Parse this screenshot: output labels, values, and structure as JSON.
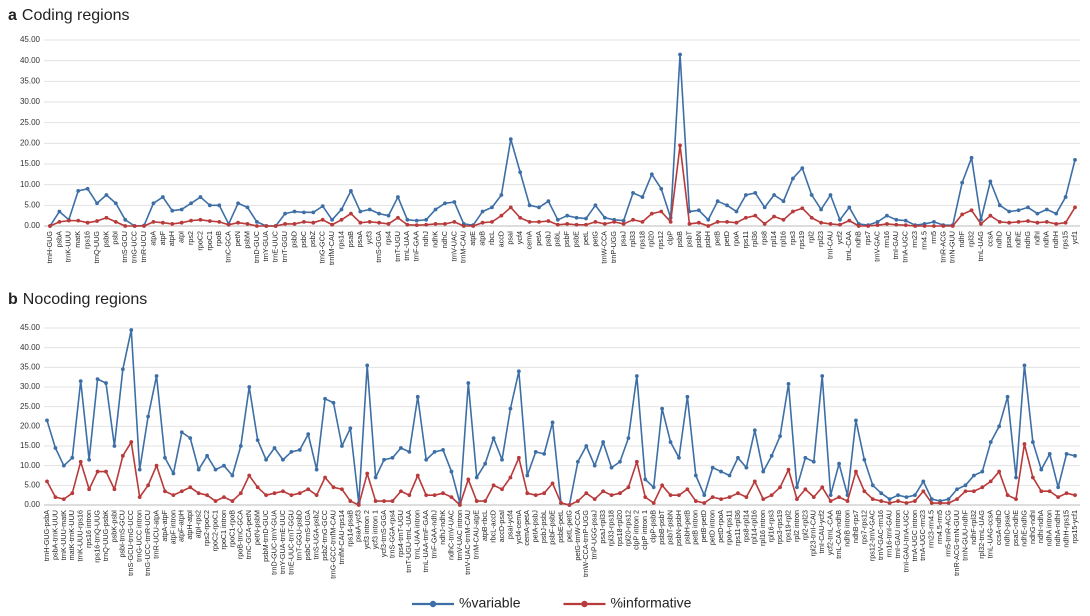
{
  "chart_data": [
    {
      "type": "line",
      "label": "a",
      "title": "Coding regions",
      "categories": [
        "trnH-GUG",
        "psbA",
        "trnK-UUU",
        "matK",
        "rps16",
        "trnQ-UUG",
        "psbK",
        "psbI",
        "trnS-GCU",
        "trnG-UCC",
        "trnR-UCU",
        "atpA",
        "atpF",
        "atpH",
        "atpI",
        "rps2",
        "rpoC2",
        "rpoC1",
        "rpoB",
        "trnC-GCA",
        "petN",
        "psbM",
        "trnD-GUC",
        "trnY-GUA",
        "trnE-UUC",
        "trnT-GGU",
        "psbD",
        "psbC",
        "psbZ",
        "trnG-GCC",
        "trnfM-CAU",
        "rps14",
        "psaB",
        "psaA",
        "ycf3",
        "trnS-GGA",
        "rps4",
        "trnT-UGU",
        "trnL-UAA",
        "trnF-GAA",
        "ndhJ",
        "ndhK",
        "ndhC",
        "trnV-UAC",
        "trnM-CAU",
        "atpE",
        "atpB",
        "rbcL",
        "accD",
        "psaI",
        "ycf4",
        "cemA",
        "petA",
        "psbJ",
        "psbL",
        "psbF",
        "psbE",
        "petL",
        "petG",
        "trnW-CCA",
        "trnP-UGG",
        "psaJ",
        "rpl33",
        "rps18",
        "rpl20",
        "rps12",
        "clpP",
        "psbB",
        "psbT",
        "psbN",
        "psbH",
        "petB",
        "petD",
        "rpoA",
        "rps11",
        "rpl36",
        "rps8",
        "rpl14",
        "rpl16",
        "rps3",
        "rps19",
        "rpl2",
        "rpl23",
        "trnI-CAU",
        "ycf2",
        "trnL-CAA",
        "ndhB",
        "rps7",
        "trnV-GAC",
        "rrn16",
        "trnI-GAU",
        "trnA-UGC",
        "rrn23",
        "rrn4.5",
        "rrn5",
        "trnR-ACG",
        "trnN-GUU",
        "ndhF",
        "rpl32",
        "trnL-UAG",
        "ccsA",
        "ndhD",
        "psaC",
        "ndhE",
        "ndhG",
        "ndhI",
        "ndhA",
        "ndhH",
        "rps15",
        "ycf1"
      ],
      "series": [
        {
          "color": "#3d6fa6",
          "values": [
            0,
            3.5,
            1.5,
            8.5,
            9,
            5.5,
            7.5,
            5.5,
            1.5,
            0,
            0.1,
            5.5,
            7,
            3.7,
            4,
            5.5,
            7,
            5,
            5,
            0.5,
            5.5,
            4.5,
            1,
            0,
            0,
            3,
            3.5,
            3.3,
            3.3,
            4.8,
            1.5,
            4,
            8.5,
            3.5,
            4,
            3,
            2.5,
            7,
            1.5,
            1.3,
            1.5,
            4,
            5.5,
            5.8,
            0.5,
            0.2,
            3.5,
            4.5,
            7.5,
            21,
            13,
            5,
            4.5,
            6,
            1.5,
            2.5,
            2,
            1.8,
            5,
            2,
            1.5,
            1.3,
            8,
            7,
            12.5,
            9,
            2,
            41.5,
            3.5,
            3.8,
            1.5,
            6,
            5,
            3.5,
            7.5,
            8,
            4.5,
            7.5,
            6,
            11.5,
            14,
            7.5,
            4,
            7.5,
            1.5,
            4.5,
            0.5,
            0.2,
            1,
            2.5,
            1.5,
            1.3,
            0.2,
            0.5,
            1,
            0.2,
            0.2,
            10.5,
            16.5,
            1.5,
            10.8,
            5,
            3.5,
            3.8,
            4.5,
            3,
            4,
            3,
            7,
            16
          ]
        },
        {
          "color": "#b83a3a",
          "values": [
            0,
            1,
            1.3,
            1.3,
            0.8,
            1.2,
            2,
            1,
            0,
            0,
            0,
            1,
            0.8,
            0.5,
            0.8,
            1.3,
            1.5,
            1.2,
            1,
            0.3,
            0.8,
            0.5,
            0,
            0,
            0,
            0.5,
            0.5,
            1,
            0.8,
            1.5,
            0.3,
            1.5,
            3,
            0.8,
            1,
            0.8,
            0.5,
            2,
            0.3,
            0.2,
            0.3,
            0.5,
            0.5,
            1,
            0,
            0,
            0.8,
            1,
            2.5,
            4.5,
            2,
            1,
            1,
            1.2,
            0.3,
            0.5,
            0.3,
            0.3,
            1,
            0.5,
            1,
            0.5,
            1.5,
            1,
            3,
            3.5,
            1,
            19.5,
            0.5,
            0.8,
            0,
            1,
            1,
            0.8,
            2,
            2.5,
            0.5,
            2.3,
            1.5,
            3.5,
            4.3,
            2,
            0.8,
            0.5,
            0.3,
            1.3,
            0,
            0,
            0.2,
            0.5,
            0.3,
            0.2,
            0,
            0,
            0,
            0,
            0,
            2.8,
            3.8,
            0.5,
            2.5,
            1,
            0.8,
            1,
            1.2,
            0.8,
            1,
            0.5,
            0.8,
            4.5
          ]
        }
      ],
      "ylim": [
        0,
        45
      ],
      "yticks": [
        {
          "value": 0,
          "label": "0.00"
        },
        {
          "value": 5,
          "label": "5.00"
        },
        {
          "value": 10,
          "label": "10.00"
        },
        {
          "value": 15,
          "label": "15.00"
        },
        {
          "value": 20,
          "label": "20.00"
        },
        {
          "value": 25,
          "label": "25.00"
        },
        {
          "value": 30,
          "label": "30.00"
        },
        {
          "value": 35,
          "label": "35.00"
        },
        {
          "value": 40,
          "label": "40.00"
        },
        {
          "value": 45,
          "label": "45.00"
        }
      ],
      "grid": true
    },
    {
      "type": "line",
      "label": "b",
      "title": "Nocoding regions",
      "categories": [
        "trnH-GUG-psbA",
        "psbA-trnK-UUU",
        "trnK-UUU-matK",
        "matK-trnK-UUU",
        "trnK-UUU-rps16",
        "rps16 intron",
        "rps16-trnQ-UUG",
        "trnQ-UUG-psbK",
        "psbK-psbI",
        "psbI-trnS-GCU",
        "trnS-GCU-trnG-UCC",
        "trnG-UCC intron",
        "trnG-UCC-trnR-UCU",
        "trnR-UCU-atpA",
        "atpA-atpF",
        "atpF intron",
        "atpF-atpH",
        "atpH-atpI",
        "atpI-rps2",
        "rps2-rpoC2",
        "rpoC2-rpoC1",
        "rpoC1 intron",
        "rpoC1-rpoB",
        "rpoB-trnC-GCA",
        "trnC-GCA-petN",
        "petN-psbM",
        "psbM-trnD-GUC",
        "trnD-GUC-trnY-GUA",
        "trnY-GUA-trnE-UUC",
        "trnE-UUC-trnT-GGU",
        "trnT-GGU-psbD",
        "psbC-trnS-UGA",
        "trnS-UGA-psbZ",
        "psbZ-trnG-GCC",
        "trnG-GCC-trnfM-CAU",
        "trnfM-CAU-rps14",
        "rps14-psaB",
        "psaA-ycf3",
        "ycf3 intron 2",
        "ycf3 intron 1",
        "ycf3-trnS-GGA",
        "trnS-GGA-rps4",
        "rps4-trnT-UGU",
        "trnT-UGU-trnL-UAA",
        "trnL-UAA intron",
        "trnL-UAA-trnF-GAA",
        "trnF-GAA-ndhJ",
        "ndhJ-ndhK",
        "ndhC-trnV-UAC",
        "trnV-UAC intron",
        "trnV-UAC-trnM-CAU",
        "trnM-CAU-atpE",
        "atpB-rbcL",
        "rbcL-accD",
        "accD-psaI",
        "psaI-ycf4",
        "ycf4-cemA",
        "cemA-petA",
        "petA-psbJ",
        "psbJ-psbL",
        "psbF-psbE",
        "psbE-petL",
        "petL-petG",
        "petG-trnW-CCA",
        "trnW-CCA-trnP-UGG",
        "trnP-UGG-psaJ",
        "psaJ-rpl33",
        "rpl33-rps18",
        "rps18-rpl20",
        "rpl20-rps12",
        "clpP intron 2",
        "clpP intron 1",
        "clpP-psbB",
        "psbB-psbT",
        "psbT-psbN",
        "psbN-psbH",
        "psbH-petB",
        "petB intron",
        "petB-petD",
        "petD intron",
        "petD-rpoA",
        "rpoA-rps11",
        "rps11-rpl36",
        "rps8-rpl14",
        "rpl14-rpl16",
        "rpl16 intron",
        "rpl16-rps3",
        "rps3-rps19",
        "rps19-rpl2",
        "rpl2 intron",
        "rpl2-rpl23",
        "rpl23-trnI-CAU",
        "trnI-CAU-ycf2",
        "ycf2-trnL-CAA",
        "trnL-CAA-ndhB",
        "ndhB intron",
        "ndhB-rps7",
        "rps7-rps12",
        "rps12-trnV-GAC",
        "trnV-GAC-rrn16",
        "rrn16-trnI-GAU",
        "trnI-GAU intron",
        "trnI-GAU-trnA-UGC",
        "trnA-UGC intron",
        "trnA-UGC-rrn23",
        "rrn23-rrn4.5",
        "rrn4.5-rrn5",
        "rrn5-trnR-ACG",
        "trnR-ACG-trnN-GUU",
        "trnN-GUU-ndhF",
        "ndhF-rpl32",
        "rpl32-trnL-UAG",
        "trnL-UAG-ccsA",
        "ccsA-ndhD",
        "ndhD-psaC",
        "psaC-ndhE",
        "ndhE-ndhG",
        "ndhG-ndhI",
        "ndhI-ndhA",
        "ndhA intron",
        "ndhA-ndhH",
        "ndhH-rps15",
        "rps15-ycf1"
      ],
      "series": [
        {
          "name": "%variable",
          "color": "#3d6fa6",
          "values": [
            21.5,
            14.5,
            10,
            12,
            31.5,
            11.5,
            32,
            31,
            15,
            34.5,
            44.5,
            9,
            22.5,
            32.8,
            12,
            8,
            18.5,
            17,
            9,
            12.5,
            9,
            10,
            7.5,
            15,
            30,
            16.5,
            11.5,
            14.5,
            11.5,
            13.5,
            14,
            18,
            9,
            27,
            26,
            15,
            19.5,
            0.5,
            35.5,
            7,
            11.5,
            12,
            14.5,
            13.5,
            27.5,
            11.5,
            13.5,
            14,
            8.5,
            0.5,
            31,
            7,
            10.5,
            17,
            11.5,
            24.5,
            34,
            7.5,
            13.5,
            13,
            21,
            0.5,
            0,
            11,
            15,
            10,
            16,
            9.5,
            11,
            17,
            32.8,
            6.5,
            4.5,
            24.5,
            16,
            12,
            27.5,
            7.5,
            2.5,
            9.5,
            8.5,
            7.5,
            12,
            9.5,
            19,
            8.5,
            12.5,
            17.5,
            30.8,
            4.5,
            12,
            11,
            32.8,
            2.5,
            10.5,
            2.5,
            21.5,
            11.5,
            5,
            3,
            1.5,
            2.5,
            2,
            2.5,
            6,
            1.5,
            1,
            1.5,
            4,
            5,
            7.5,
            8.5,
            16,
            20,
            27.5,
            7,
            35.5,
            16,
            9,
            13,
            4.5,
            13,
            12.5
          ]
        },
        {
          "name": "%informative",
          "color": "#b83a3a",
          "values": [
            6,
            2,
            1.5,
            3,
            11,
            4,
            8.5,
            8.5,
            4,
            12.5,
            16,
            2,
            5,
            10,
            3.5,
            2.5,
            3.5,
            4.5,
            3,
            2.5,
            1,
            2,
            1,
            3,
            7.5,
            4.5,
            2.5,
            3,
            3.5,
            2.5,
            3,
            4,
            2.5,
            7,
            4.5,
            4,
            1,
            0,
            8,
            1,
            1,
            1,
            3.5,
            2.5,
            7.5,
            2.5,
            2.5,
            3,
            2,
            0,
            6.5,
            1,
            1,
            5,
            4,
            7,
            12,
            3,
            2.5,
            3,
            5.5,
            0.5,
            0,
            1,
            3,
            1.5,
            3.5,
            2.5,
            3,
            4.5,
            11,
            2,
            0.5,
            5,
            2.5,
            2.5,
            4,
            1,
            0.5,
            2,
            1.5,
            2,
            3,
            2,
            6,
            1.5,
            2.5,
            4.5,
            9,
            1.5,
            4,
            2,
            4.5,
            1,
            2,
            1,
            8.5,
            3.5,
            1.5,
            1,
            0.5,
            1,
            0.5,
            1,
            3.5,
            0.5,
            0.5,
            0.5,
            1.5,
            3.5,
            3.5,
            4.5,
            6,
            8.5,
            2.5,
            1.5,
            15.5,
            7,
            3.5,
            3.5,
            2,
            3,
            2.5
          ]
        }
      ],
      "ylim": [
        0,
        45
      ],
      "yticks": [
        {
          "value": 0,
          "label": "0.00"
        },
        {
          "value": 5,
          "label": "5.00"
        },
        {
          "value": 10,
          "label": "10.00"
        },
        {
          "value": 15,
          "label": "15.00"
        },
        {
          "value": 20,
          "label": "20.00"
        },
        {
          "value": 25,
          "label": "25.00"
        },
        {
          "value": 30,
          "label": "30.00"
        },
        {
          "value": 35,
          "label": "35.00"
        },
        {
          "value": 40,
          "label": "40.00"
        },
        {
          "value": 45,
          "label": "45.00"
        }
      ],
      "grid": true
    }
  ]
}
